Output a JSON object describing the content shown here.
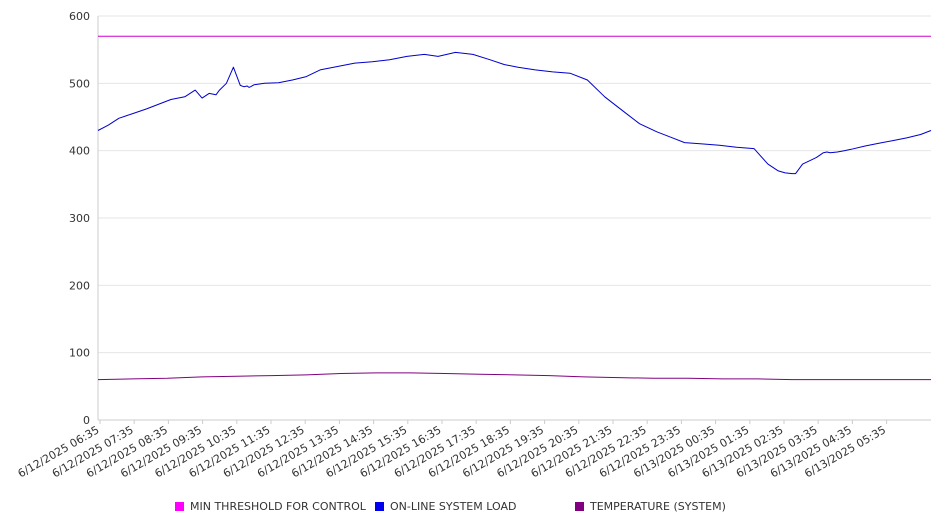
{
  "chart_data": {
    "type": "line",
    "title": "",
    "xlabel": "",
    "ylabel": "",
    "ylim": [
      0,
      600
    ],
    "yticks": [
      0,
      100,
      200,
      300,
      400,
      500,
      600
    ],
    "grid": true,
    "legend_position": "bottom",
    "x_tick_labels": [
      "6/12/2025 06:35",
      "6/12/2025 07:35",
      "6/12/2025 08:35",
      "6/12/2025 09:35",
      "6/12/2025 10:35",
      "6/12/2025 11:35",
      "6/12/2025 12:35",
      "6/12/2025 13:35",
      "6/12/2025 14:35",
      "6/12/2025 15:35",
      "6/12/2025 16:35",
      "6/12/2025 17:35",
      "6/12/2025 18:35",
      "6/12/2025 19:35",
      "6/12/2025 20:35",
      "6/12/2025 21:35",
      "6/12/2025 22:35",
      "6/12/2025 23:35",
      "6/13/2025 00:35",
      "6/13/2025 01:35",
      "6/13/2025 02:35",
      "6/13/2025 03:35",
      "6/13/2025 04:35",
      "6/13/2025 05:35"
    ],
    "x_range_hours": [
      0,
      24
    ],
    "series": [
      {
        "name": "MIN THRESHOLD FOR CONTROL",
        "color": "#cc00cc",
        "hours": [
          0,
          24
        ],
        "values": [
          570,
          570
        ]
      },
      {
        "name": "ON-LINE SYSTEM LOAD",
        "color": "#0000cc",
        "hours": [
          0,
          0.3,
          0.6,
          1.0,
          1.4,
          1.8,
          2.1,
          2.5,
          2.8,
          3.0,
          3.2,
          3.4,
          3.5,
          3.7,
          3.9,
          4.1,
          4.2,
          4.3,
          4.35,
          4.4,
          4.5,
          4.8,
          5.2,
          5.6,
          6.0,
          6.4,
          6.9,
          7.4,
          7.9,
          8.4,
          8.9,
          9.4,
          9.8,
          10.3,
          10.8,
          11.3,
          11.7,
          12.1,
          12.6,
          13.1,
          13.6,
          14.1,
          14.6,
          15.1,
          15.6,
          16.1,
          16.5,
          16.9,
          17.4,
          17.9,
          18.4,
          18.9,
          19.3,
          19.6,
          19.8,
          20.0,
          20.1,
          20.3,
          20.5,
          20.7,
          20.9,
          21.0,
          21.1,
          21.3,
          21.5,
          21.7,
          22.1,
          22.5,
          22.9,
          23.3,
          23.7,
          24.0
        ],
        "values": [
          430,
          438,
          448,
          455,
          462,
          470,
          476,
          480,
          490,
          478,
          485,
          483,
          490,
          500,
          524,
          497,
          495,
          496,
          494,
          495,
          498,
          500,
          501,
          505,
          510,
          520,
          525,
          530,
          532,
          535,
          540,
          543,
          540,
          546,
          543,
          535,
          528,
          524,
          520,
          517,
          515,
          505,
          480,
          460,
          440,
          428,
          420,
          412,
          410,
          408,
          405,
          403,
          380,
          370,
          367,
          366,
          366,
          380,
          385,
          390,
          397,
          398,
          397,
          398,
          400,
          402,
          407,
          411,
          415,
          419,
          424,
          430
        ]
      },
      {
        "name": "TEMPERATURE (SYSTEM)",
        "color": "#800080",
        "hours": [
          0,
          1,
          2,
          3,
          4,
          5,
          6,
          7,
          8,
          9,
          10,
          11,
          12,
          13,
          14,
          15,
          16,
          17,
          18,
          19,
          20,
          21,
          22,
          23,
          24
        ],
        "values": [
          60,
          61,
          62,
          64,
          65,
          66,
          67,
          69,
          70,
          70,
          69,
          68,
          67,
          66,
          64,
          63,
          62,
          62,
          61,
          61,
          60,
          60,
          60,
          60,
          60
        ]
      }
    ]
  }
}
